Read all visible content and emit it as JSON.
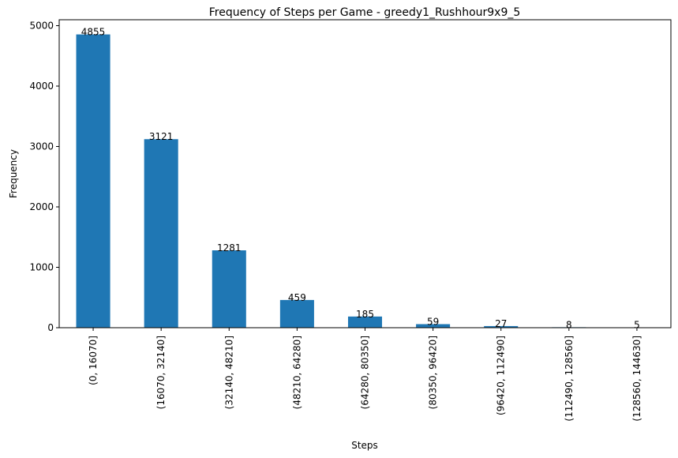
{
  "chart_data": {
    "type": "bar",
    "title": "Frequency of Steps per Game - greedy1_Rushhour9x9_5",
    "xlabel": "Steps",
    "ylabel": "Frequency",
    "categories": [
      "(0, 16070]",
      "(16070, 32140]",
      "(32140, 48210]",
      "(48210, 64280]",
      "(64280, 80350]",
      "(80350, 96420]",
      "(96420, 112490]",
      "(112490, 128560]",
      "(128560, 144630]"
    ],
    "values": [
      4855,
      3121,
      1281,
      459,
      185,
      59,
      27,
      8,
      5
    ],
    "data_labels": [
      "4855",
      "3121",
      "1281",
      "459",
      "185",
      "59",
      "27",
      "8",
      "5"
    ],
    "yticks": [
      0,
      1000,
      2000,
      3000,
      4000,
      5000
    ],
    "ylim": [
      0,
      5098
    ],
    "grid": false,
    "legend": "none",
    "bar_color": "#1f77b4"
  }
}
